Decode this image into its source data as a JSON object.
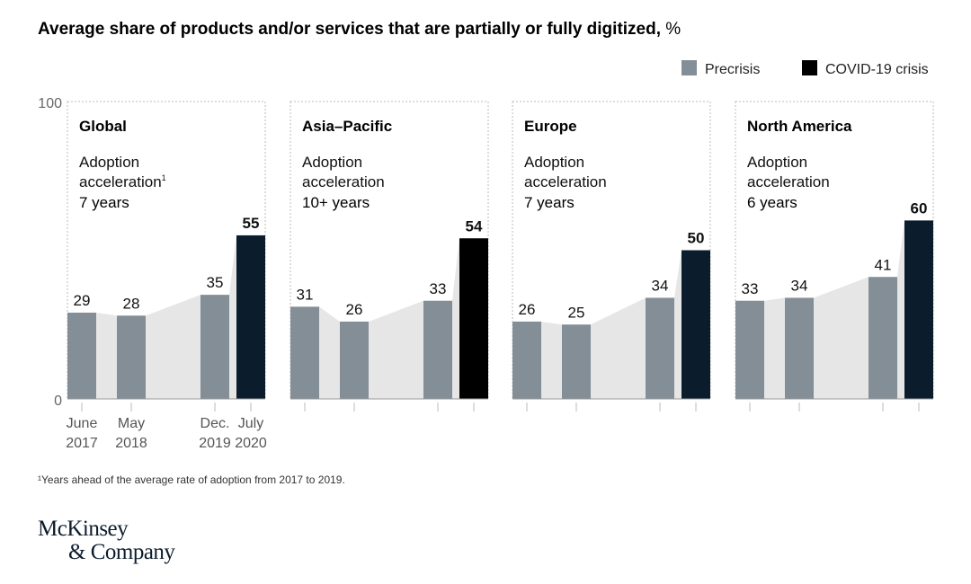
{
  "title": "Average share of products and/or services that are partially or fully digitized,",
  "title_unit": "%",
  "footnote": "¹Years ahead of the average rate of adoption from 2017 to 2019.",
  "logo": {
    "line1": "McKinsey",
    "line2": "& Company"
  },
  "chart_data": {
    "type": "bar",
    "ylim": [
      0,
      100
    ],
    "yticks": [
      "0",
      "100"
    ],
    "categories": [
      "June 2017",
      "May 2018",
      "Dec. 2019",
      "July 2020"
    ],
    "category_lines": [
      [
        "June",
        "2017"
      ],
      [
        "May",
        "2018"
      ],
      [
        "Dec.",
        "2019"
      ],
      [
        "July",
        "2020"
      ]
    ],
    "legend": [
      {
        "name": "Precrisis",
        "color": "#848e96"
      },
      {
        "name": "COVID-19 crisis",
        "color": "#000000"
      }
    ],
    "legend_position": "top-right",
    "panels": [
      {
        "region": "Global",
        "note1": "Adoption",
        "note2": "acceleration",
        "sup": "1",
        "years": "7 years",
        "values": [
          29,
          28,
          35,
          55
        ],
        "crisis_color": "#0b1c2c"
      },
      {
        "region": "Asia–Pacific",
        "note1": "Adoption",
        "note2": "acceleration",
        "sup": "",
        "years": "10+ years",
        "values": [
          31,
          26,
          33,
          54
        ],
        "crisis_color": "#000000"
      },
      {
        "region": "Europe",
        "note1": "Adoption",
        "note2": "acceleration",
        "sup": "",
        "years": "7 years",
        "values": [
          26,
          25,
          34,
          50
        ],
        "crisis_color": "#0b1c2c"
      },
      {
        "region": "North America",
        "note1": "Adoption",
        "note2": "acceleration",
        "sup": "",
        "years": "6 years",
        "values": [
          33,
          34,
          41,
          60
        ],
        "crisis_color": "#0b1c2c"
      }
    ]
  }
}
